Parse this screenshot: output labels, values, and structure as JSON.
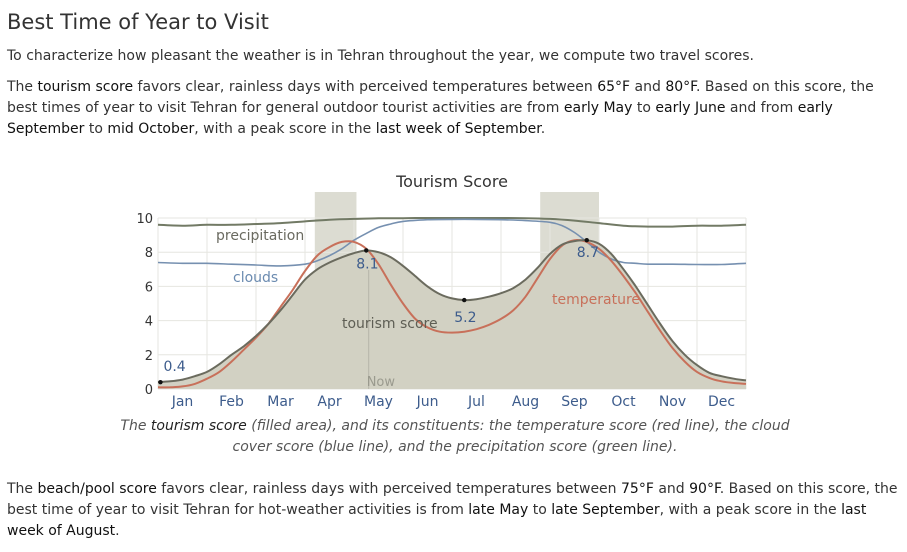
{
  "heading": "Best Time of Year to Visit",
  "intro": "To characterize how pleasant the weather is in Tehran throughout the year, we compute two travel scores.",
  "tourism_paragraph": {
    "t1": "The ",
    "b1": "tourism score",
    "t2": " favors clear, rainless days with perceived temperatures between ",
    "b2": "65°F",
    "t3": " and ",
    "b3": "80°F",
    "t4": ". Based on this score, the best times of year to visit Tehran for general outdoor tourist activities are from ",
    "b4": "early May",
    "t5": " to ",
    "b5": "early June",
    "t6": " and from ",
    "b6": "early September",
    "t7": " to ",
    "b7": "mid October",
    "t8": ", with a peak score in the ",
    "b8": "last week of September",
    "t9": "."
  },
  "caption": {
    "t1": "The ",
    "b1": "tourism score",
    "t2": " (filled area), and its constituents: the temperature score (red line), the cloud cover score (blue line), and the precipitation score (green line)."
  },
  "beach_paragraph": {
    "t1": "The ",
    "b1": "beach/pool score",
    "t2": " favors clear, rainless days with perceived temperatures between ",
    "b2": "75°F",
    "t3": " and ",
    "b3": "90°F",
    "t4": ". Based on this score, the best time of year to visit Tehran for hot-weather activities is from ",
    "b4": "late May",
    "t5": " to ",
    "b5": "late September",
    "t6": ", with a peak score in the ",
    "b6": "last week of August",
    "t7": "."
  },
  "chart_data": {
    "type": "area",
    "title": "Tourism Score",
    "ylim": [
      0,
      10
    ],
    "y_ticks": [
      "0",
      "2",
      "4",
      "6",
      "8",
      "10"
    ],
    "x_range": [
      0,
      12
    ],
    "months": [
      "Jan",
      "Feb",
      "Mar",
      "Apr",
      "May",
      "Jun",
      "Jul",
      "Aug",
      "Sep",
      "Oct",
      "Nov",
      "Dec"
    ],
    "now_label": "Now",
    "now_month": 4.3,
    "highlight_bands": [
      [
        3.2,
        4.05
      ],
      [
        7.8,
        9.0
      ]
    ],
    "grid": true,
    "colors": {
      "tourism_fill": "#d2d1c3",
      "tourism_line": "#6b6b5e",
      "temperature": "#c8705a",
      "clouds": "#7690b0",
      "precipitation": "#727a65",
      "band": "#dcdcd2",
      "label_blue": "#3d5c8c"
    },
    "series": [
      {
        "name": "tourism score",
        "x": [
          0,
          0.25,
          0.5,
          0.75,
          1.0,
          1.25,
          1.5,
          1.75,
          2.0,
          2.25,
          2.5,
          2.75,
          3.0,
          3.25,
          3.5,
          3.75,
          4.0,
          4.25,
          4.5,
          4.75,
          5.0,
          5.25,
          5.5,
          5.75,
          6.0,
          6.25,
          6.5,
          6.75,
          7.0,
          7.25,
          7.5,
          7.75,
          8.0,
          8.25,
          8.5,
          8.75,
          9.0,
          9.25,
          9.5,
          9.75,
          10.0,
          10.25,
          10.5,
          10.75,
          11.0,
          11.25,
          11.5,
          11.75,
          12.0
        ],
        "values": [
          0.4,
          0.45,
          0.55,
          0.75,
          1.0,
          1.45,
          2.0,
          2.5,
          3.1,
          3.8,
          4.6,
          5.5,
          6.4,
          7.0,
          7.4,
          7.7,
          7.95,
          8.1,
          8.0,
          7.7,
          7.2,
          6.6,
          6.0,
          5.55,
          5.3,
          5.2,
          5.25,
          5.4,
          5.6,
          5.9,
          6.4,
          7.1,
          7.9,
          8.45,
          8.65,
          8.7,
          8.5,
          7.9,
          7.0,
          6.0,
          4.9,
          3.8,
          2.8,
          2.0,
          1.4,
          0.95,
          0.75,
          0.6,
          0.5
        ]
      },
      {
        "name": "temperature",
        "x": [
          0,
          0.25,
          0.5,
          0.75,
          1.0,
          1.25,
          1.5,
          1.75,
          2.0,
          2.25,
          2.5,
          2.75,
          3.0,
          3.25,
          3.5,
          3.75,
          4.0,
          4.25,
          4.5,
          4.75,
          5.0,
          5.25,
          5.5,
          5.75,
          6.0,
          6.25,
          6.5,
          6.75,
          7.0,
          7.25,
          7.5,
          7.75,
          8.0,
          8.25,
          8.5,
          8.75,
          9.0,
          9.25,
          9.5,
          9.75,
          10.0,
          10.25,
          10.5,
          10.75,
          11.0,
          11.25,
          11.5,
          11.75,
          12.0
        ],
        "values": [
          0.1,
          0.1,
          0.15,
          0.3,
          0.6,
          1.0,
          1.6,
          2.3,
          3.0,
          3.8,
          4.8,
          5.8,
          6.9,
          7.8,
          8.3,
          8.6,
          8.6,
          8.2,
          7.3,
          6.1,
          5.0,
          4.1,
          3.6,
          3.35,
          3.3,
          3.35,
          3.5,
          3.75,
          4.1,
          4.6,
          5.4,
          6.5,
          7.6,
          8.4,
          8.7,
          8.6,
          8.2,
          7.5,
          6.6,
          5.6,
          4.5,
          3.4,
          2.4,
          1.6,
          1.0,
          0.65,
          0.45,
          0.35,
          0.3
        ]
      },
      {
        "name": "clouds",
        "x": [
          0,
          0.5,
          1.0,
          1.5,
          2.0,
          2.5,
          3.0,
          3.25,
          3.5,
          3.75,
          4.0,
          4.25,
          4.5,
          4.75,
          5.0,
          5.5,
          6.0,
          6.5,
          7.0,
          7.5,
          8.0,
          8.25,
          8.5,
          8.75,
          9.0,
          9.25,
          9.5,
          9.75,
          10.0,
          10.5,
          11.0,
          11.5,
          12.0
        ],
        "values": [
          7.4,
          7.35,
          7.35,
          7.3,
          7.25,
          7.2,
          7.3,
          7.5,
          7.8,
          8.2,
          8.7,
          9.1,
          9.45,
          9.65,
          9.8,
          9.9,
          9.92,
          9.92,
          9.9,
          9.85,
          9.75,
          9.55,
          9.15,
          8.6,
          8.0,
          7.6,
          7.4,
          7.35,
          7.3,
          7.3,
          7.28,
          7.28,
          7.35
        ]
      },
      {
        "name": "precipitation",
        "x": [
          0,
          0.5,
          1.0,
          1.5,
          2.0,
          2.5,
          3.0,
          3.5,
          4.0,
          4.5,
          5.0,
          5.5,
          6.0,
          6.5,
          7.0,
          7.5,
          8.0,
          8.5,
          9.0,
          9.5,
          10.0,
          10.5,
          11.0,
          11.5,
          12.0
        ],
        "values": [
          9.6,
          9.55,
          9.6,
          9.6,
          9.65,
          9.7,
          9.8,
          9.9,
          9.95,
          9.98,
          9.99,
          10.0,
          10.0,
          10.0,
          10.0,
          9.99,
          9.95,
          9.85,
          9.7,
          9.55,
          9.5,
          9.5,
          9.55,
          9.55,
          9.6
        ]
      }
    ],
    "series_labels": [
      "precipitation",
      "clouds",
      "tourism score",
      "temperature"
    ],
    "data_labels": [
      {
        "x": 0.05,
        "value": "0.4"
      },
      {
        "x": 4.25,
        "value": "8.1"
      },
      {
        "x": 6.25,
        "value": "5.2"
      },
      {
        "x": 8.75,
        "value": "8.7"
      }
    ]
  }
}
